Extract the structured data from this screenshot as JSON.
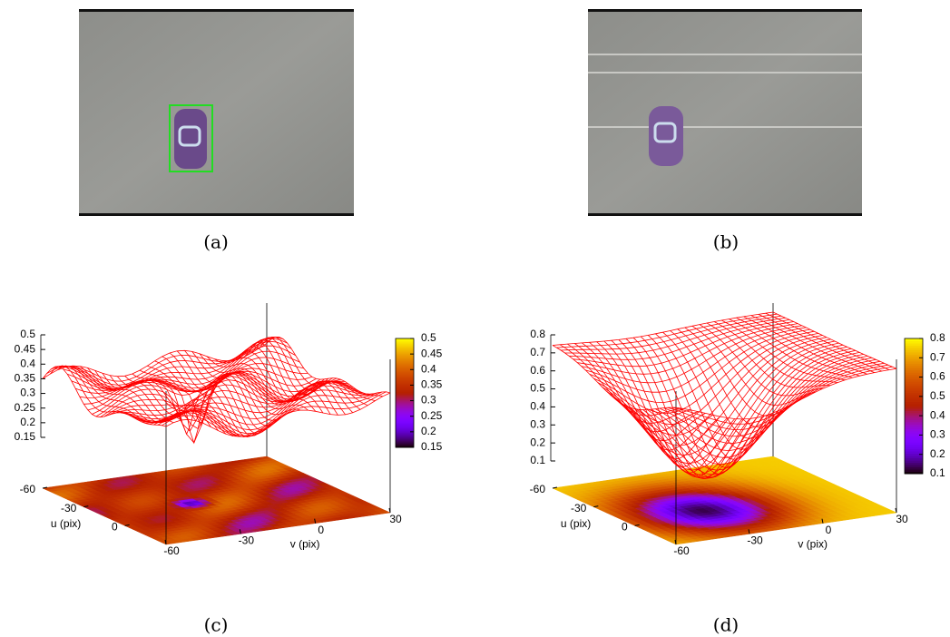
{
  "panels": [
    {
      "label": "(a)"
    },
    {
      "label": "(b)"
    },
    {
      "label": "(c)",
      "plot": {
        "type": "surface",
        "zlim": [
          0.15,
          0.5
        ],
        "zticks": [
          0.15,
          0.2,
          0.25,
          0.3,
          0.35,
          0.4,
          0.45,
          0.5
        ],
        "colorbar_ticks": [
          0.15,
          0.2,
          0.25,
          0.3,
          0.35,
          0.4,
          0.45,
          0.5
        ],
        "ulim": [
          -60,
          30
        ],
        "uticks": [
          -60,
          -30,
          0
        ],
        "vlim": [
          -60,
          30
        ],
        "vticks": [
          -60,
          -30,
          0,
          30
        ],
        "u_label": "u (pix)",
        "v_label": "v (pix)",
        "color": "#ff0000"
      }
    },
    {
      "label": "(d)",
      "plot": {
        "type": "surface",
        "zlim": [
          0.1,
          0.8
        ],
        "zticks": [
          0.1,
          0.2,
          0.3,
          0.4,
          0.5,
          0.6,
          0.7,
          0.8
        ],
        "colorbar_ticks": [
          0.1,
          0.2,
          0.3,
          0.4,
          0.5,
          0.6,
          0.7,
          0.8
        ],
        "ulim": [
          -60,
          30
        ],
        "uticks": [
          -60,
          -30,
          0
        ],
        "vlim": [
          -60,
          30
        ],
        "vticks": [
          -60,
          -30,
          0,
          30
        ],
        "u_label": "u (pix)",
        "v_label": "v (pix)",
        "color": "#ff0000"
      }
    }
  ]
}
